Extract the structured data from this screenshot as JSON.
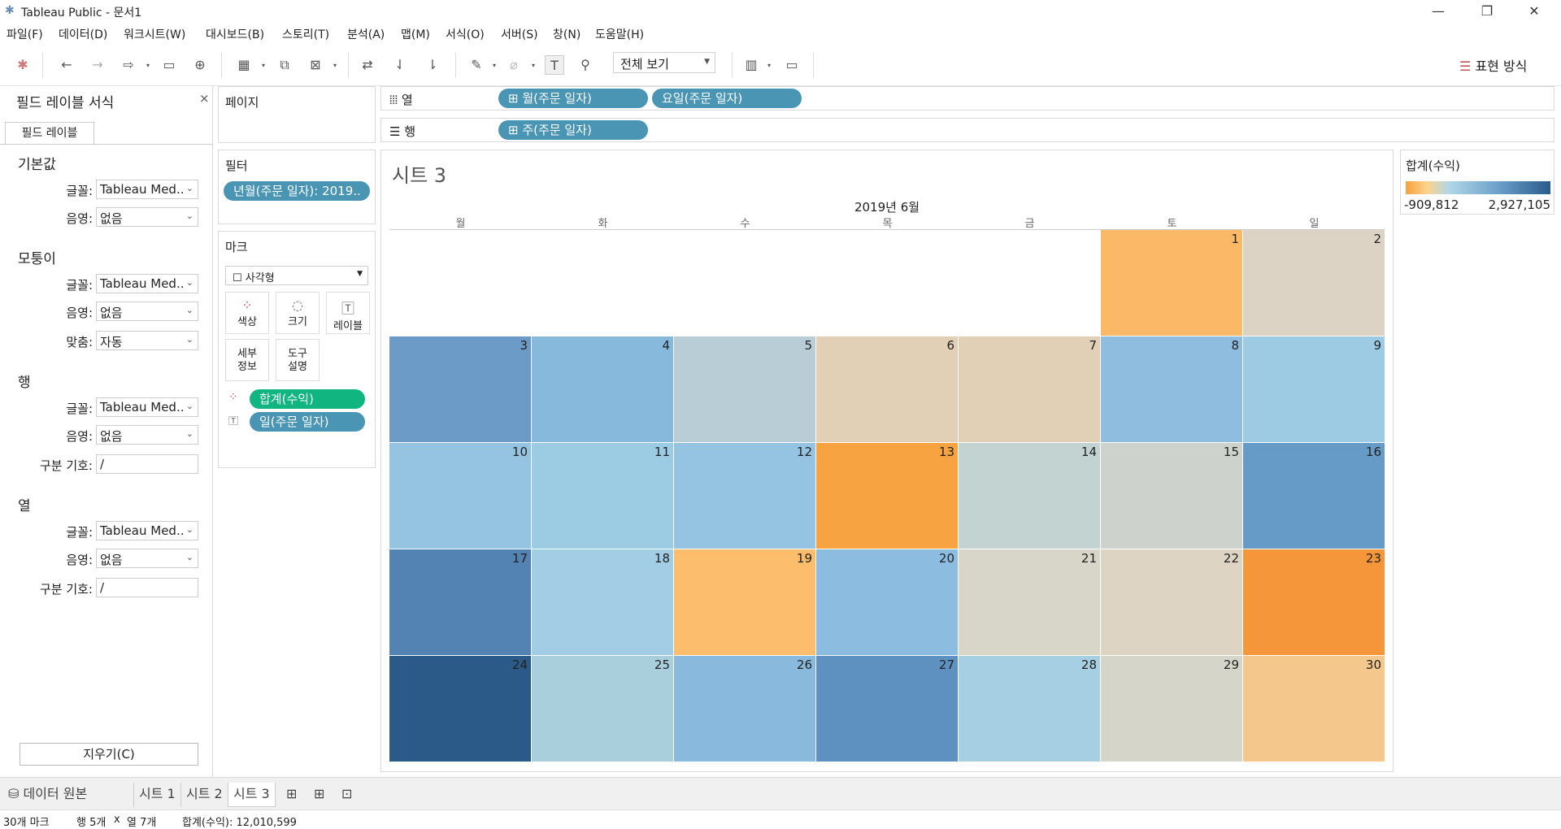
{
  "window": {
    "title": "Tableau Public - 문서1"
  },
  "menu": [
    "파일(F)",
    "데이터(D)",
    "워크시트(W)",
    "대시보드(B)",
    "스토리(T)",
    "분석(A)",
    "맵(M)",
    "서식(O)",
    "서버(S)",
    "창(N)",
    "도움말(H)"
  ],
  "toolbar": {
    "view_select": "전체 보기",
    "show_me": "표현 방식"
  },
  "format_pane": {
    "title": "필드 레이블 서식",
    "tab": "필드 레이블",
    "sections": {
      "default": {
        "title": "기본값",
        "font_label": "글꼴:",
        "font_value": "Tableau Med..",
        "shading_label": "음영:",
        "shading_value": "없음"
      },
      "corner": {
        "title": "모퉁이",
        "font_label": "글꼴:",
        "font_value": "Tableau Med..",
        "shading_label": "음영:",
        "shading_value": "없음",
        "align_label": "맞춤:",
        "align_value": "자동"
      },
      "rows": {
        "title": "행",
        "font_label": "글꼴:",
        "font_value": "Tableau Med..",
        "shading_label": "음영:",
        "shading_value": "없음",
        "sep_label": "구분 기호:",
        "sep_value": "/"
      },
      "cols": {
        "title": "열",
        "font_label": "글꼴:",
        "font_value": "Tableau Med..",
        "shading_label": "음영:",
        "shading_value": "없음",
        "sep_label": "구분 기호:",
        "sep_value": "/"
      }
    },
    "clear_button": "지우기(C)"
  },
  "pages": {
    "title": "페이지"
  },
  "filters": {
    "title": "필터",
    "pill": "년월(주문 일자): 2019.."
  },
  "marks": {
    "title": "마크",
    "type": "사각형",
    "buttons": {
      "color": "색상",
      "size": "크기",
      "label": "레이블",
      "detail": "세부 정보",
      "tooltip": "도구 설명"
    },
    "pills": {
      "color_field": "합계(수익)",
      "label_field": "일(주문 일자)"
    }
  },
  "columns_shelf": {
    "label": "열",
    "pills": [
      "⊞ 월(주문 일자)",
      "요일(주문 일자)"
    ]
  },
  "rows_shelf": {
    "label": "행",
    "pills": [
      "⊞ 주(주문 일자)"
    ]
  },
  "view": {
    "sheet_title": "시트 3",
    "month_header": "2019년 6월",
    "weekdays": [
      "월",
      "화",
      "수",
      "목",
      "금",
      "토",
      "일"
    ],
    "days": [
      {
        "day": "1",
        "color": "#fbb867"
      },
      {
        "day": "2",
        "color": "#dcd3c5"
      },
      {
        "day": "3",
        "color": "#6c9bc7"
      },
      {
        "day": "4",
        "color": "#86b9db"
      },
      {
        "day": "5",
        "color": "#b9cdd6"
      },
      {
        "day": "6",
        "color": "#e2d0b6"
      },
      {
        "day": "7",
        "color": "#e2d0b6"
      },
      {
        "day": "8",
        "color": "#8ebde0"
      },
      {
        "day": "9",
        "color": "#9ecbe4"
      },
      {
        "day": "10",
        "color": "#94c4e2"
      },
      {
        "day": "11",
        "color": "#9ccbe4"
      },
      {
        "day": "12",
        "color": "#94c4e2"
      },
      {
        "day": "13",
        "color": "#f8a341"
      },
      {
        "day": "14",
        "color": "#c3d3d2"
      },
      {
        "day": "15",
        "color": "#cdd3cc"
      },
      {
        "day": "16",
        "color": "#679bc7"
      },
      {
        "day": "17",
        "color": "#5383b2"
      },
      {
        "day": "18",
        "color": "#a2cde4"
      },
      {
        "day": "19",
        "color": "#fcbe6c"
      },
      {
        "day": "20",
        "color": "#8cbde0"
      },
      {
        "day": "21",
        "color": "#d8d6c9"
      },
      {
        "day": "22",
        "color": "#ddd4c4"
      },
      {
        "day": "23",
        "color": "#f6963a"
      },
      {
        "day": "24",
        "color": "#2b5a88"
      },
      {
        "day": "25",
        "color": "#a9cedc"
      },
      {
        "day": "26",
        "color": "#89badd"
      },
      {
        "day": "27",
        "color": "#5e91c0"
      },
      {
        "day": "28",
        "color": "#a6cfe3"
      },
      {
        "day": "29",
        "color": "#d6d5c9"
      },
      {
        "day": "30",
        "color": "#f4c88c"
      }
    ]
  },
  "legend": {
    "title": "합계(수익)",
    "min": "-909,812",
    "max": "2,927,105"
  },
  "sheet_tabs": {
    "data_source": "데이터 원본",
    "tabs": [
      "시트 1",
      "시트 2",
      "시트 3"
    ],
    "active": "시트 3"
  },
  "status": {
    "marks": "30개 마크",
    "rows": "행 5개",
    "x": "x",
    "cols": "열 7개",
    "sum": "합계(수익): 12,010,599"
  }
}
